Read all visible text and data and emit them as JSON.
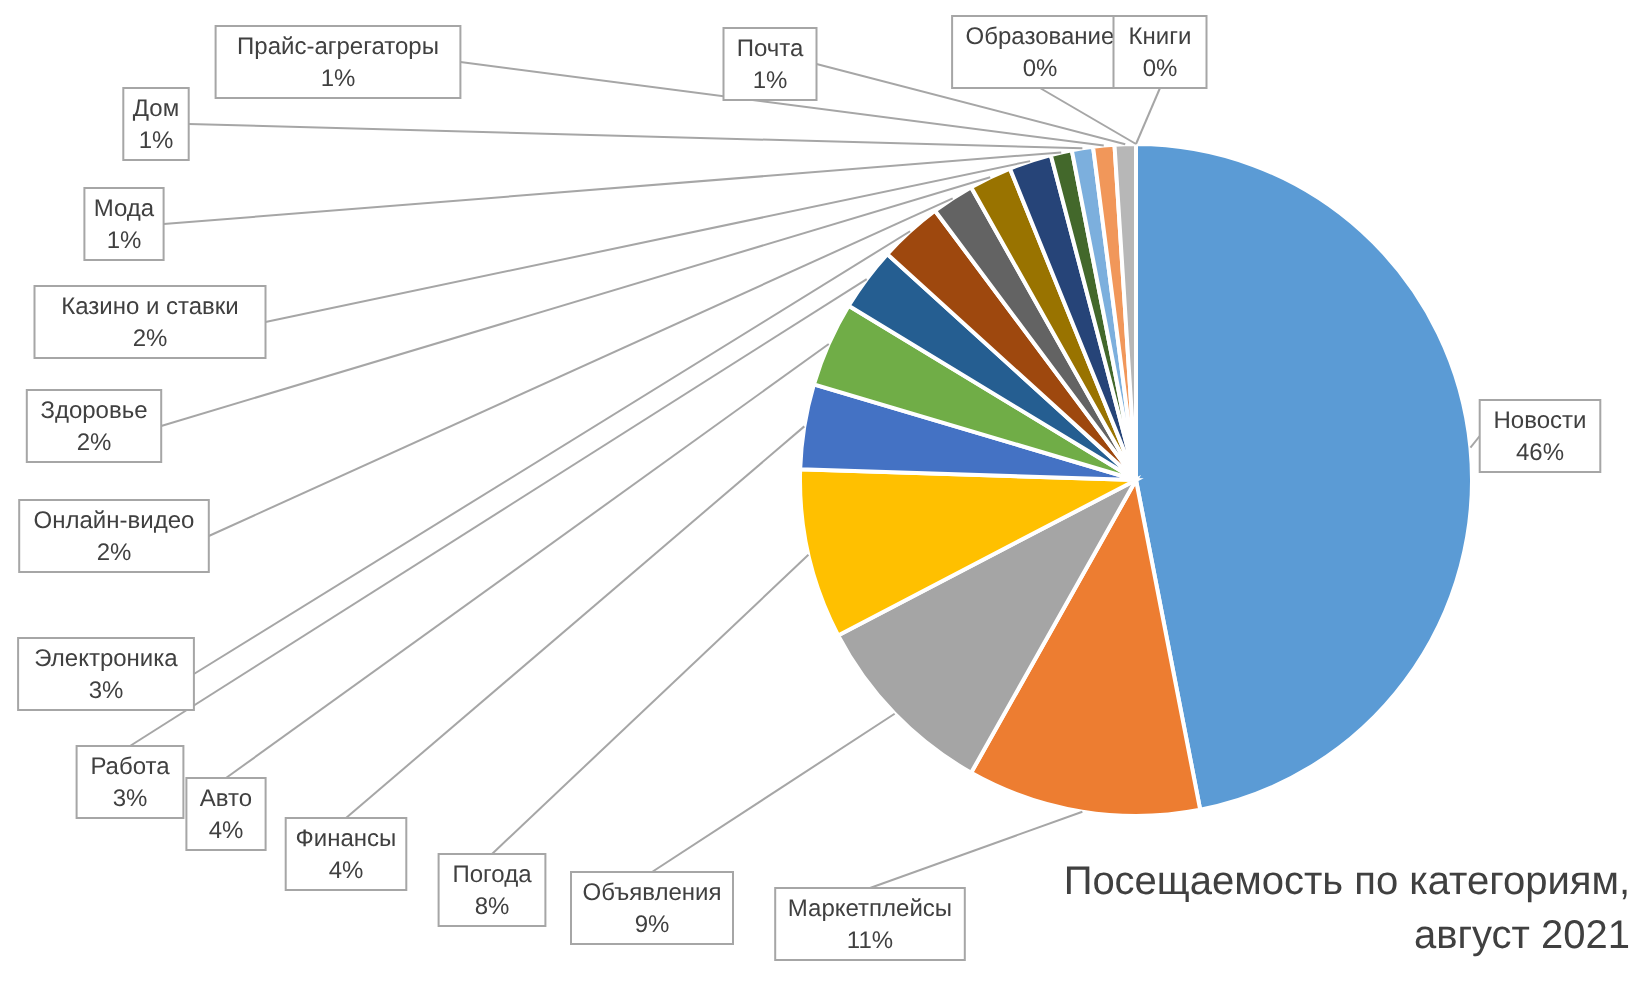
{
  "chart_data": {
    "type": "pie",
    "title": "Посещаемость по категориям, август 2021",
    "categories": [
      "Новости",
      "Маркетплейсы",
      "Объявления",
      "Погода",
      "Финансы",
      "Авто",
      "Работа",
      "Электроника",
      "Онлайн-видео",
      "Здоровье",
      "Казино и ставки",
      "Мода",
      "Дом",
      "Прайс-агрегаторы",
      "Почта",
      "Образование",
      "Книги"
    ],
    "values": [
      46,
      11,
      9,
      8,
      4,
      4,
      3,
      3,
      2,
      2,
      2,
      1,
      1,
      1,
      1,
      0,
      0
    ],
    "value_labels": [
      "46%",
      "11%",
      "9%",
      "8%",
      "4%",
      "4%",
      "3%",
      "3%",
      "2%",
      "2%",
      "2%",
      "1%",
      "1%",
      "1%",
      "1%",
      "0%",
      "0%"
    ],
    "colors": [
      "#5b9bd5",
      "#ed7d31",
      "#a5a5a5",
      "#ffc000",
      "#4472c4",
      "#70ad47",
      "#255e91",
      "#9e480e",
      "#636363",
      "#997300",
      "#264478",
      "#43682b",
      "#7cafdd",
      "#f1975a",
      "#b7b7b7",
      "#ffcd33",
      "#698ed0"
    ],
    "legend": false
  }
}
